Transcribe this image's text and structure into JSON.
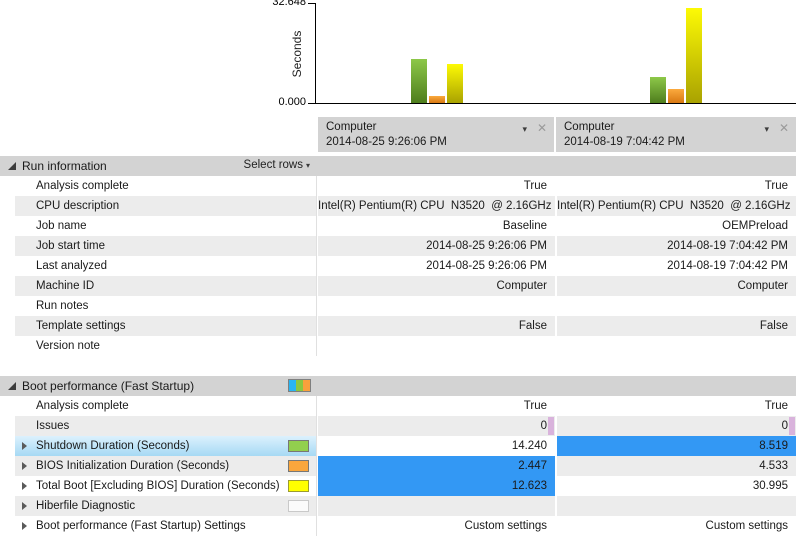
{
  "chart_data": {
    "type": "bar",
    "title": "",
    "xlabel": "",
    "ylabel": "Seconds",
    "ylim": [
      0,
      32.648
    ],
    "ytick_labels": [
      "0.000",
      "32.648"
    ],
    "grid": false,
    "legend_position": "none",
    "categories": [
      "Computer 2014-08-25 9:26:06 PM",
      "Computer 2014-08-19 7:04:42 PM"
    ],
    "series": [
      {
        "name": "Shutdown Duration (Seconds)",
        "color": "#76b041",
        "values": [
          14.24,
          8.519
        ]
      },
      {
        "name": "BIOS Initialization Duration (Seconds)",
        "color": "#f79e31",
        "values": [
          2.447,
          4.533
        ]
      },
      {
        "name": "Total Boot [Excluding BIOS] Duration (Seconds)",
        "color": "#f0ec0a",
        "values": [
          12.623,
          30.995
        ]
      }
    ]
  },
  "columns": [
    {
      "machine": "Computer",
      "timestamp": "2014-08-25 9:26:06 PM"
    },
    {
      "machine": "Computer",
      "timestamp": "2014-08-19 7:04:42 PM"
    }
  ],
  "icons": {
    "column_caret": "▾",
    "column_close": "✕",
    "select_rows_caret": "▾"
  },
  "run_information": {
    "title": "Run information",
    "select_rows_label": "Select rows",
    "rows": [
      {
        "label": "Analysis complete",
        "values": [
          "True",
          "True"
        ]
      },
      {
        "label": "CPU description",
        "values": [
          "Intel(R) Pentium(R) CPU  N3520  @ 2.16GHz",
          "Intel(R) Pentium(R) CPU  N3520  @ 2.16GHz"
        ]
      },
      {
        "label": "Job name",
        "values": [
          "Baseline",
          "OEMPreload"
        ]
      },
      {
        "label": "Job start time",
        "values": [
          "2014-08-25 9:26:06 PM",
          "2014-08-19 7:04:42 PM"
        ]
      },
      {
        "label": "Last analyzed",
        "values": [
          "2014-08-25 9:26:06 PM",
          "2014-08-19 7:04:42 PM"
        ]
      },
      {
        "label": "Machine ID",
        "values": [
          "Computer",
          "Computer"
        ]
      },
      {
        "label": "Run notes",
        "values": [
          "",
          ""
        ]
      },
      {
        "label": "Template settings",
        "values": [
          "False",
          "False"
        ]
      },
      {
        "label": "Version note",
        "values": [
          "",
          ""
        ]
      }
    ]
  },
  "boot_performance": {
    "title": "Boot performance (Fast Startup)",
    "rows": [
      {
        "label": "Analysis complete",
        "values": [
          "True",
          "True"
        ]
      },
      {
        "label": "Issues",
        "values": [
          "0",
          "0"
        ]
      },
      {
        "label": "Shutdown Duration (Seconds)",
        "values": [
          "14.240",
          "8.519"
        ]
      },
      {
        "label": "BIOS Initialization Duration (Seconds)",
        "values": [
          "2.447",
          "4.533"
        ]
      },
      {
        "label": "Total Boot [Excluding BIOS] Duration (Seconds)",
        "values": [
          "12.623",
          "30.995"
        ]
      },
      {
        "label": "Hiberfile Diagnostic",
        "values": [
          "",
          ""
        ]
      },
      {
        "label": "Boot performance (Fast Startup) Settings",
        "values": [
          "Custom settings",
          "Custom settings"
        ]
      }
    ]
  },
  "colors": {
    "best_value_highlight": "#3398f4",
    "selected_row": "#a6d9f4",
    "issue_marker": "#d9b3dc",
    "section_header_bg": "#d3d3d3",
    "alt_row_bg": "#ececec",
    "series_green": "#76b041",
    "series_orange": "#f79e31",
    "series_yellow": "#f0ec0a",
    "legend_blue": "#29b5f2"
  }
}
